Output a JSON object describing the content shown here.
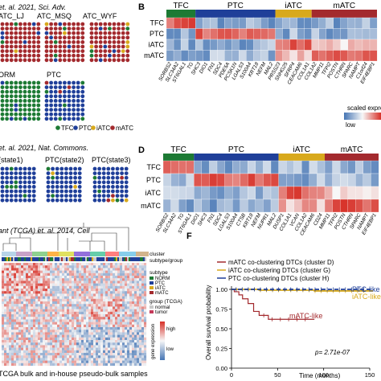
{
  "colors": {
    "tfc": "#1d7a34",
    "ptc": "#1f3f99",
    "iatc": "#d8a91c",
    "matc": "#a32a2e",
    "heat_red": "#d73027",
    "heat_blue": "#4575b4",
    "heat_white": "#f7f7f7",
    "km_matc": "#a32a2e",
    "km_iatc": "#d8a91c",
    "km_ptc": "#1f3f99"
  },
  "panel_a": {
    "citation": "et. al. 2021, Sci. Adv.",
    "samples_row1": [
      "ATC_LJ",
      "ATC_MSQ",
      "ATC_WYF"
    ],
    "samples_row2": [
      "ORM",
      "PTC"
    ],
    "legend": [
      "TFC",
      "PTC",
      "iATC",
      "mATC"
    ]
  },
  "panel_b": {
    "label": "B",
    "groups": [
      "TFC",
      "PTC",
      "iATC",
      "mATC"
    ],
    "rows": [
      "TFC",
      "PTC",
      "iATC",
      "mATC"
    ],
    "genes": [
      "SORBS2",
      "SLC34A2",
      "ST6GAL1",
      "TG",
      "SHC3",
      "DIO1",
      "FN1",
      "SDC4",
      "PDE5A",
      "PCSK1N",
      "LGALS3",
      "S100A4",
      "KRT18",
      "NEFM",
      "MAL2",
      "PRSS23",
      "SNHG25",
      "SFRP4",
      "CEACAM6",
      "COL1A1",
      "COL1A2",
      "MMP11",
      "TFPI2",
      "POSTN",
      "CTHRN",
      "SPARC",
      "NAMPT",
      "C1orf24",
      "EIF4EBP1"
    ],
    "scale_title": "scaled expression",
    "scale_low": "low"
  },
  "panel_c": {
    "citation": "et. al. 2021, Nat. Commons.",
    "samples": [
      "(state1)",
      "PTC(state2)",
      "PTC(state3)"
    ]
  },
  "panel_d": {
    "label": "D",
    "groups": [
      "TFC",
      "PTC",
      "iATC",
      "mATC"
    ],
    "rows": [
      "TFC",
      "PTC",
      "iATC",
      "mATC"
    ],
    "genes": [
      "SORBS2",
      "SLC34A2",
      "TG",
      "ST6GAL1",
      "DIO1",
      "SHC3",
      "FN1",
      "SDC4",
      "LGALS3",
      "S100A4",
      "CTSB",
      "KRT18",
      "NEFM",
      "NUPR1",
      "MAL2",
      "DUSP1",
      "COL1A1",
      "VCAN",
      "COL1A2",
      "CEACAM6",
      "CD24",
      "MMP11",
      "TFPI2",
      "POSTN",
      "CTHRN",
      "SPARC",
      "NAMPT",
      "EIF4EBP1"
    ]
  },
  "panel_e": {
    "citation": "ant (TCGA) et. al. 2014, Cell",
    "right_labels": [
      "cluster",
      "subtype/group"
    ],
    "subtype_title": "subtype",
    "subtypes": [
      "NORM",
      "PTC",
      "iATC",
      "mATC"
    ],
    "group_title": "group (TCGA)",
    "groups": [
      "normal",
      "tumor"
    ],
    "gene_expr_title": "gene expression",
    "high": "high",
    "low": "low",
    "bottom_caption": "TCGA bulk and in-house pseudo-bulk samples"
  },
  "panel_f": {
    "label": "F",
    "legend": [
      "mATC co-clustering DTCs (cluster D)",
      "iATC co-clustering DTCs (cluster G)",
      "PTC co-clustering DTCs (cluster H)"
    ],
    "ylabel": "Overall survival probability",
    "xlabel": "Time (months)",
    "yticks": [
      "0.00",
      "0.25",
      "0.50",
      "0.75",
      "1.00"
    ],
    "xticks": [
      "0",
      "50",
      "100",
      "150"
    ],
    "pvalue": "p= 2.71e-07",
    "curve_labels": [
      "PTC-like",
      "iATC-like",
      "mATC-like"
    ]
  },
  "chart_data": {
    "type": "line",
    "title": "",
    "xlabel": "Time (months)",
    "ylabel": "Overall survival probability",
    "xlim": [
      0,
      150
    ],
    "ylim": [
      0,
      1
    ],
    "series": [
      {
        "name": "mATC co-clustering DTCs (cluster D)",
        "x": [
          0,
          3,
          8,
          12,
          18,
          24,
          30,
          40,
          60,
          90
        ],
        "y": [
          1.0,
          0.97,
          0.93,
          0.88,
          0.82,
          0.72,
          0.67,
          0.62,
          0.62,
          0.62
        ]
      },
      {
        "name": "iATC co-clustering DTCs (cluster G)",
        "x": [
          0,
          30,
          60,
          90,
          120,
          155
        ],
        "y": [
          1.0,
          0.99,
          0.99,
          0.98,
          0.98,
          0.98
        ]
      },
      {
        "name": "PTC co-clustering DTCs (cluster H)",
        "x": [
          0,
          30,
          60,
          90,
          120,
          155
        ],
        "y": [
          1.0,
          1.0,
          1.0,
          1.0,
          1.0,
          1.0
        ]
      }
    ]
  }
}
